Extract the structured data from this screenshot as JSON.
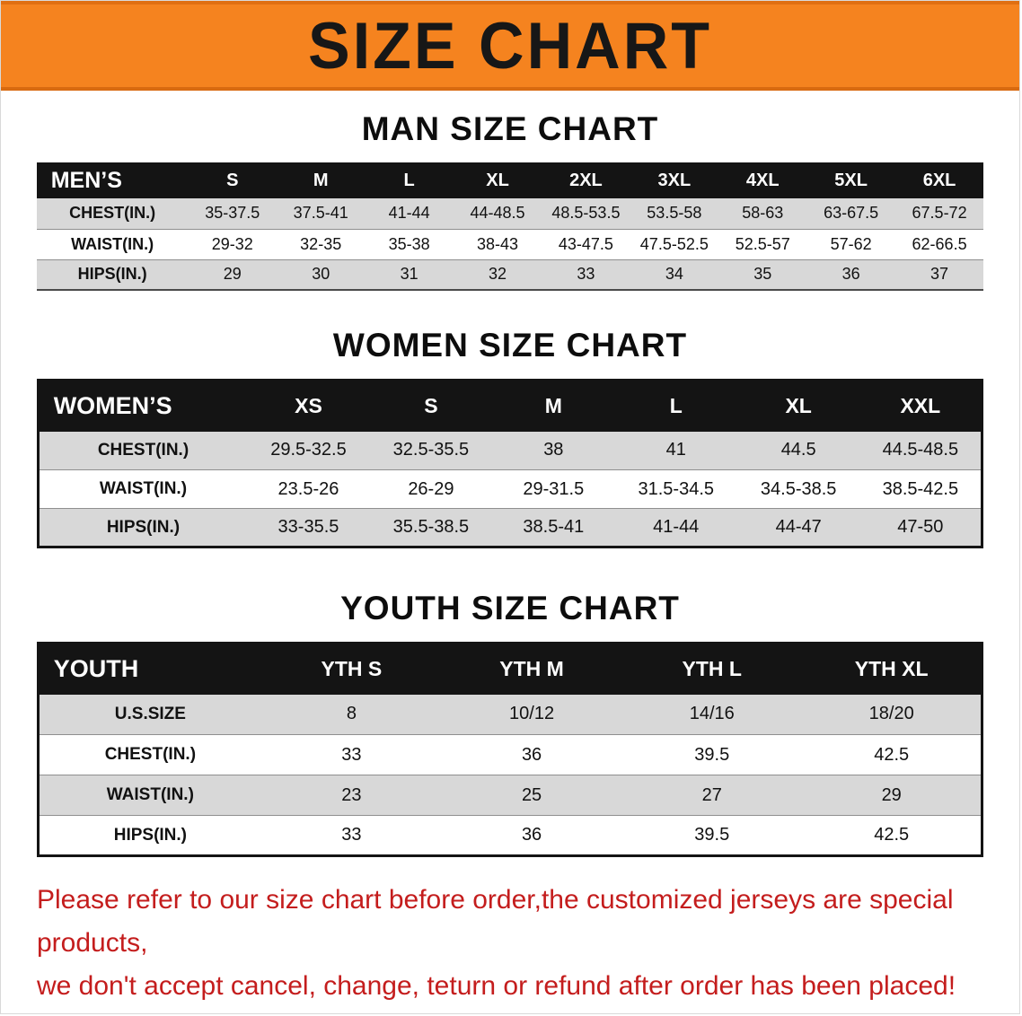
{
  "banner": {
    "title": "SIZE CHART",
    "bg_color": "#f5831f",
    "text_color": "#171717"
  },
  "sections": [
    {
      "heading": "MAN SIZE CHART",
      "table": {
        "corner": "MEN’S",
        "headers": [
          "S",
          "M",
          "L",
          "XL",
          "2XL",
          "3XL",
          "4XL",
          "5XL",
          "6XL"
        ],
        "rows": [
          {
            "label": "CHEST(IN.)",
            "values": [
              "35-37.5",
              "37.5-41",
              "41-44",
              "44-48.5",
              "48.5-53.5",
              "53.5-58",
              "58-63",
              "63-67.5",
              "67.5-72"
            ]
          },
          {
            "label": "WAIST(IN.)",
            "values": [
              "29-32",
              "32-35",
              "35-38",
              "38-43",
              "43-47.5",
              "47.5-52.5",
              "52.5-57",
              "57-62",
              "62-66.5"
            ]
          },
          {
            "label": "HIPS(IN.)",
            "values": [
              "29",
              "30",
              "31",
              "32",
              "33",
              "34",
              "35",
              "36",
              "37"
            ]
          }
        ]
      }
    },
    {
      "heading": "WOMEN SIZE CHART",
      "table": {
        "corner": "WOMEN’S",
        "headers": [
          "XS",
          "S",
          "M",
          "L",
          "XL",
          "XXL"
        ],
        "rows": [
          {
            "label": "CHEST(IN.)",
            "values": [
              "29.5-32.5",
              "32.5-35.5",
              "38",
              "41",
              "44.5",
              "44.5-48.5"
            ]
          },
          {
            "label": "WAIST(IN.)",
            "values": [
              "23.5-26",
              "26-29",
              "29-31.5",
              "31.5-34.5",
              "34.5-38.5",
              "38.5-42.5"
            ]
          },
          {
            "label": "HIPS(IN.)",
            "values": [
              "33-35.5",
              "35.5-38.5",
              "38.5-41",
              "41-44",
              "44-47",
              "47-50"
            ]
          }
        ]
      }
    },
    {
      "heading": "YOUTH SIZE CHART",
      "table": {
        "corner": "YOUTH",
        "headers": [
          "YTH S",
          "YTH M",
          "YTH L",
          "YTH XL"
        ],
        "rows": [
          {
            "label": "U.S.SIZE",
            "values": [
              "8",
              "10/12",
              "14/16",
              "18/20"
            ]
          },
          {
            "label": "CHEST(IN.)",
            "values": [
              "33",
              "36",
              "39.5",
              "42.5"
            ]
          },
          {
            "label": "WAIST(IN.)",
            "values": [
              "23",
              "25",
              "27",
              "29"
            ]
          },
          {
            "label": "HIPS(IN.)",
            "values": [
              "33",
              "36",
              "39.5",
              "42.5"
            ]
          }
        ]
      }
    }
  ],
  "footer": {
    "lines": [
      "Please refer to our size chart before order,the customized jerseys are special products,",
      "we don't accept cancel, change, teturn or refund after order has been placed!"
    ],
    "text_color": "#c41d1d"
  }
}
